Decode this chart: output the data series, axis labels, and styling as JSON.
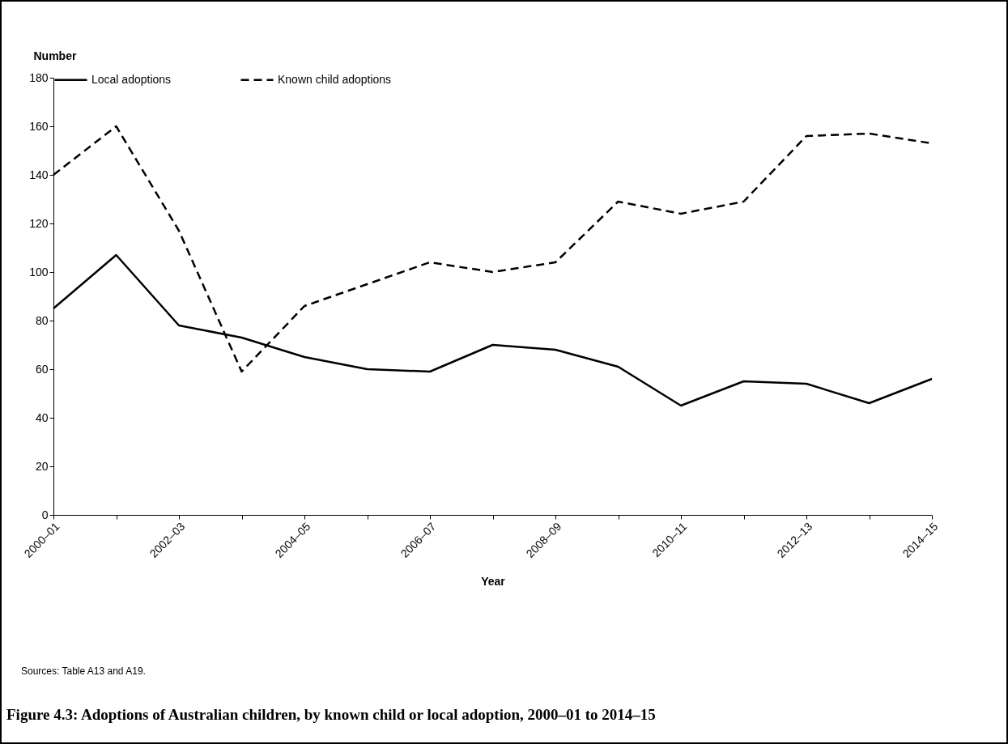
{
  "chart_data": {
    "type": "line",
    "title": "Figure 4.3: Adoptions of Australian children, by known child or local adoption, 2000–01 to 2014–15",
    "xlabel": "Year",
    "ylabel": "Number",
    "annotations": [
      "Sources: Table A13 and A19."
    ],
    "categories": [
      "2000–01",
      null,
      "2002–03",
      null,
      "2004–05",
      null,
      "2006–07",
      null,
      "2008–09",
      null,
      "2010–11",
      null,
      "2012–13",
      null,
      "2014–15"
    ],
    "series": [
      {
        "name": "Local adoptions",
        "color": "#000000",
        "line_style": "solid",
        "values": [
          85,
          107,
          78,
          73,
          65,
          60,
          59,
          70,
          68,
          61,
          45,
          55,
          54,
          46,
          56
        ]
      },
      {
        "name": "Known child adoptions",
        "color": "#000000",
        "line_style": "dashed",
        "values": [
          140,
          160,
          117,
          59,
          86,
          95,
          104,
          100,
          104,
          129,
          124,
          129,
          156,
          157,
          153
        ]
      }
    ],
    "ylim": [
      0,
      180
    ],
    "yticks": [
      0,
      20,
      40,
      60,
      80,
      100,
      120,
      140,
      160,
      180
    ],
    "grid": false,
    "legend": "top",
    "marker": "none"
  }
}
